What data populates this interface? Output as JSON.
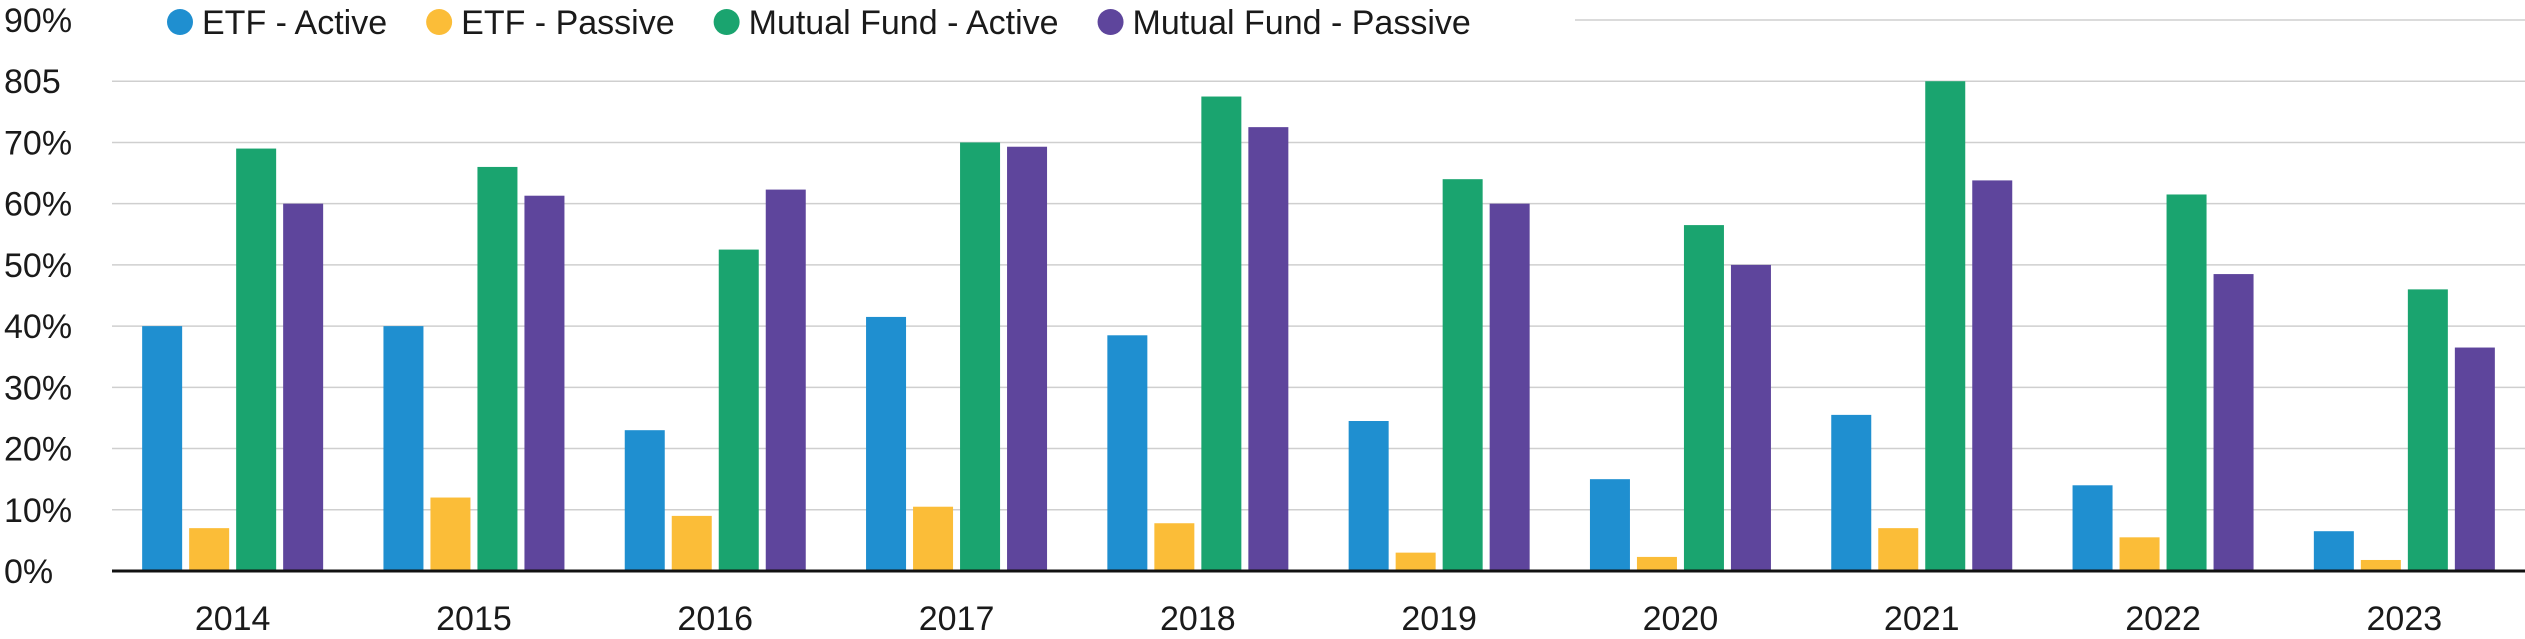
{
  "chart_data": {
    "type": "bar",
    "categories": [
      "2014",
      "2015",
      "2016",
      "2017",
      "2018",
      "2019",
      "2020",
      "2021",
      "2022",
      "2023"
    ],
    "series": [
      {
        "name": "ETF - Active",
        "color": "#1f8fd0",
        "values": [
          40,
          40,
          23,
          41.5,
          38.5,
          24.5,
          15,
          25.5,
          14,
          6.5
        ]
      },
      {
        "name": "ETF - Passive",
        "color": "#fbbd38",
        "values": [
          7,
          12,
          9,
          10.5,
          7.8,
          3,
          2.3,
          7,
          5.5,
          1.8
        ]
      },
      {
        "name": "Mutual Fund - Active",
        "color": "#1aa46f",
        "values": [
          69,
          66,
          52.5,
          70,
          77.5,
          64,
          56.5,
          80,
          61.5,
          46
        ]
      },
      {
        "name": "Mutual Fund - Passive",
        "color": "#5e459c",
        "values": [
          60,
          61.3,
          62.3,
          69.3,
          72.5,
          60,
          50,
          63.8,
          48.5,
          36.5
        ]
      }
    ],
    "yticks": [
      "0%",
      "10%",
      "20%",
      "30%",
      "40%",
      "50%",
      "60%",
      "70%",
      "805",
      "90%"
    ],
    "ylim": [
      0,
      90
    ],
    "grid": true,
    "legend_position": "top-left"
  }
}
